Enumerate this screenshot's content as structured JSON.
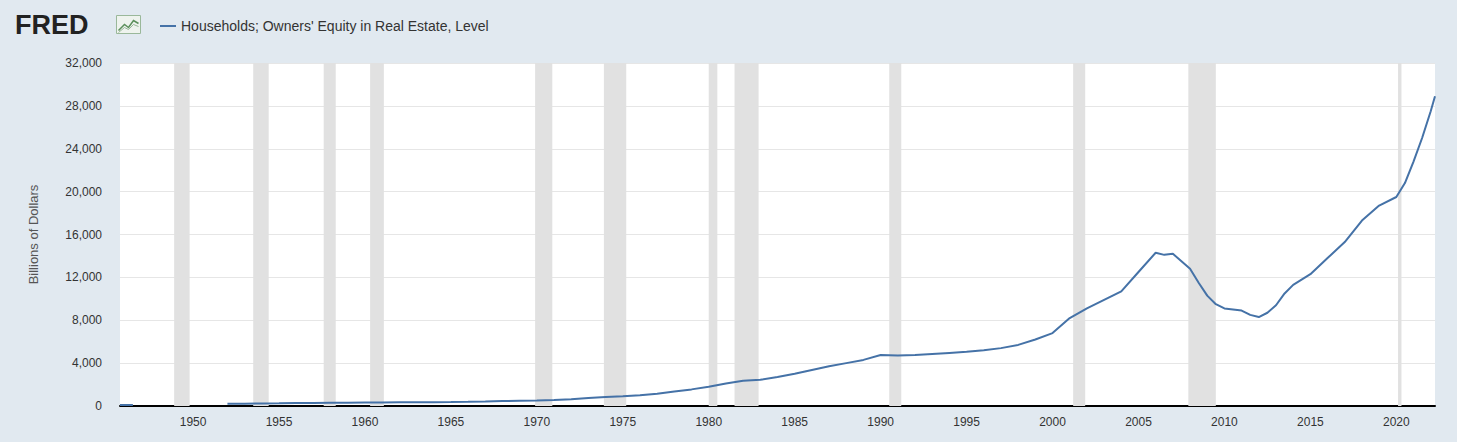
{
  "chart_data": {
    "type": "line",
    "logo": "FRED",
    "y_label": "Billions of Dollars",
    "x": [
      1945.75,
      1946.5,
      1949,
      1952,
      1953,
      1954,
      1955,
      1956,
      1957,
      1958,
      1959,
      1960,
      1961,
      1962,
      1963,
      1964,
      1965,
      1966,
      1967,
      1968,
      1969,
      1970,
      1971,
      1972,
      1973,
      1974,
      1975,
      1976,
      1977,
      1978,
      1979,
      1980,
      1981,
      1982,
      1983,
      1984,
      1985,
      1986,
      1987,
      1988,
      1989,
      1990,
      1991,
      1992,
      1993,
      1994,
      1995,
      1996,
      1997,
      1998,
      1999,
      2000,
      2001,
      2002,
      2003,
      2004,
      2005,
      2006,
      2006.5,
      2007,
      2007.5,
      2008,
      2008.5,
      2009,
      2009.5,
      2010,
      2011,
      2011.5,
      2012,
      2012.5,
      2013,
      2013.5,
      2014,
      2015,
      2016,
      2017,
      2018,
      2019,
      2020,
      2020.5,
      2021,
      2021.5,
      2022,
      2022.25
    ],
    "series": [
      {
        "name": "Households; Owners' Equity in Real Estate, Level",
        "color": "#4572a7",
        "values": [
          100,
          100,
          null,
          200,
          220,
          240,
          250,
          270,
          290,
          300,
          310,
          320,
          330,
          340,
          350,
          360,
          370,
          390,
          420,
          460,
          490,
          520,
          570,
          630,
          750,
          850,
          900,
          1000,
          1150,
          1350,
          1550,
          1800,
          2100,
          2350,
          2450,
          2700,
          3000,
          3350,
          3700,
          4000,
          4300,
          4750,
          4700,
          4750,
          4850,
          4950,
          5050,
          5200,
          5400,
          5700,
          6200,
          6800,
          8200,
          9100,
          9900,
          10700,
          12500,
          14300,
          14100,
          14200,
          13500,
          12800,
          11500,
          10300,
          9500,
          9100,
          8900,
          8500,
          8300,
          8700,
          9400,
          10500,
          11300,
          12300,
          13800,
          15300,
          17300,
          18700,
          19500,
          20800,
          22800,
          25000,
          27500,
          28900
        ]
      }
    ],
    "xlim": [
      1945.75,
      2022.25
    ],
    "xticks": [
      1950,
      1955,
      1960,
      1965,
      1970,
      1975,
      1980,
      1985,
      1990,
      1995,
      2000,
      2005,
      2010,
      2015,
      2020
    ],
    "ylim": [
      0,
      32000
    ],
    "yticks": [
      0,
      {
        "value": 4000,
        "label": "4,000"
      },
      {
        "value": 8000,
        "label": "8,000"
      },
      {
        "value": 12000,
        "label": "12,000"
      },
      {
        "value": 16000,
        "label": "16,000"
      },
      {
        "value": 20000,
        "label": "20,000"
      },
      {
        "value": 24000,
        "label": "24,000"
      },
      {
        "value": 28000,
        "label": "28,000"
      },
      {
        "value": 32000,
        "label": "32,000"
      }
    ],
    "grid": true,
    "legend": "top-left",
    "recessions": [
      [
        1948.9,
        1949.8
      ],
      [
        1953.5,
        1954.4
      ],
      [
        1957.6,
        1958.3
      ],
      [
        1960.3,
        1961.1
      ],
      [
        1969.9,
        1970.9
      ],
      [
        1973.9,
        1975.2
      ],
      [
        1980.0,
        1980.5
      ],
      [
        1981.5,
        1982.9
      ],
      [
        1990.5,
        1991.2
      ],
      [
        2001.2,
        2001.9
      ],
      [
        2007.9,
        2009.5
      ],
      [
        2020.1,
        2020.3
      ]
    ]
  }
}
